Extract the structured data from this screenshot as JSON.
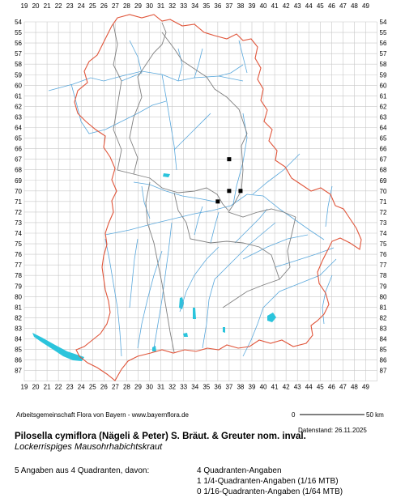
{
  "grid": {
    "columns": [
      "19",
      "20",
      "21",
      "22",
      "23",
      "24",
      "25",
      "26",
      "27",
      "28",
      "29",
      "30",
      "31",
      "32",
      "33",
      "34",
      "35",
      "36",
      "37",
      "38",
      "39",
      "40",
      "41",
      "42",
      "43",
      "44",
      "45",
      "46",
      "47",
      "48",
      "49"
    ],
    "rows": [
      "54",
      "55",
      "56",
      "57",
      "58",
      "59",
      "60",
      "61",
      "62",
      "63",
      "64",
      "65",
      "66",
      "67",
      "68",
      "69",
      "70",
      "71",
      "72",
      "73",
      "74",
      "75",
      "76",
      "77",
      "78",
      "79",
      "80",
      "81",
      "82",
      "83",
      "84",
      "85",
      "86",
      "87"
    ]
  },
  "occurrences": [
    {
      "col": "37",
      "row": "67"
    },
    {
      "col": "37",
      "row": "70"
    },
    {
      "col": "38",
      "row": "70"
    },
    {
      "col": "36",
      "row": "71"
    }
  ],
  "colors": {
    "grid": "#c8c8c8",
    "border": "#e0553a",
    "districts": "#808080",
    "rivers": "#5aa8dc",
    "lakes": "#2bc4dc",
    "marker": "#000000"
  },
  "footer": {
    "attribution": "Arbeitsgemeinschaft Flora von Bayern - www.bayernflora.de",
    "scale_start": "0",
    "scale_end": "50 km",
    "date": "Datenstand: 26.11.2025",
    "species_name": "Pilosella cymiflora (Nägeli & Peter) S. Bräut. & Greuter nom. inval.",
    "common_name": "Lockerrispiges Mausohrhabichtskraut",
    "summary": "5 Angaben aus 4 Quadranten, davon:",
    "quadrants": [
      "4 Quadranten-Angaben",
      "1 1/4-Quadranten-Angaben (1/16 MTB)",
      "0 1/16-Quadranten-Angaben (1/64 MTB)"
    ]
  }
}
